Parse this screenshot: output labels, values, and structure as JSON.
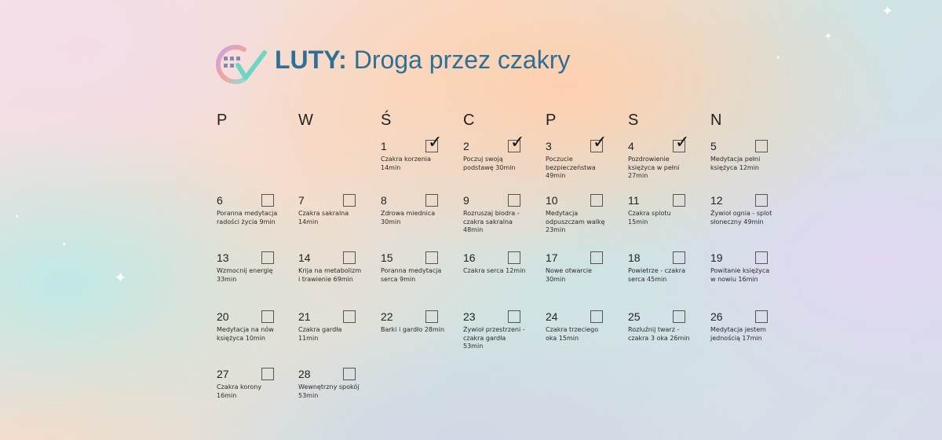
{
  "header": {
    "title_bold": "LUTY:",
    "title_rest": " Droga przez czakry"
  },
  "weekdays": [
    "P",
    "W",
    "Ś",
    "C",
    "P",
    "S",
    "N"
  ],
  "days": [
    {
      "day": "1",
      "text": "Czakra korzenia 14min",
      "done": true
    },
    {
      "day": "2",
      "text": "Poczuj swoją podstawę 30min",
      "done": true
    },
    {
      "day": "3",
      "text": "Poczucie bezpieczeństwa 49min",
      "done": true
    },
    {
      "day": "4",
      "text": "Pozdrowienie księżyca w pełni 27min",
      "done": true
    },
    {
      "day": "5",
      "text": "Medytacja pełni księżyca 12min",
      "done": false
    },
    {
      "day": "6",
      "text": "Poranna medytacja radości życia 9min",
      "done": false
    },
    {
      "day": "7",
      "text": "Czakra sakralna 14min",
      "done": false
    },
    {
      "day": "8",
      "text": "Zdrowa miednica 30min",
      "done": false
    },
    {
      "day": "9",
      "text": "Rozruszaj biodra - czakra sakralna 48min",
      "done": false
    },
    {
      "day": "10",
      "text": "Medytacja odpuszczam walkę 23min",
      "done": false
    },
    {
      "day": "11",
      "text": "Czakra splotu 15min",
      "done": false
    },
    {
      "day": "12",
      "text": "Żywioł ognia - splot słoneczny 49min",
      "done": false
    },
    {
      "day": "13",
      "text": "Wzmocnij energię 33min",
      "done": false
    },
    {
      "day": "14",
      "text": "Krija na metabolizm i trawienie 69min",
      "done": false
    },
    {
      "day": "15",
      "text": "Poranna medytacja serca 9min",
      "done": false
    },
    {
      "day": "16",
      "text": "Czakra serca 12min",
      "done": false
    },
    {
      "day": "17",
      "text": "Nowe otwarcie 30min",
      "done": false
    },
    {
      "day": "18",
      "text": "Powietrze - czakra serca 45min",
      "done": false
    },
    {
      "day": "19",
      "text": "Powitanie księżyca w nowiu 16min",
      "done": false
    },
    {
      "day": "20",
      "text": "Medytacja na nów księżyca 10min",
      "done": false
    },
    {
      "day": "21",
      "text": "Czakra gardła 11min",
      "done": false
    },
    {
      "day": "22",
      "text": "Barki i gardło 28min",
      "done": false
    },
    {
      "day": "23",
      "text": "Żywioł przestrzeni - czakra gardła 53min",
      "done": false
    },
    {
      "day": "24",
      "text": "Czakra trzeciego oka 15min",
      "done": false
    },
    {
      "day": "25",
      "text": "Rozluźnij twarz - czakra 3 oka 26min",
      "done": false
    },
    {
      "day": "26",
      "text": "Medytacja jestem jednością 17min",
      "done": false
    },
    {
      "day": "27",
      "text": "Czakra korony 16min",
      "done": false
    },
    {
      "day": "28",
      "text": "Wewnętrzny spokój 53min",
      "done": false
    }
  ],
  "check_glyph": "✓",
  "colors": {
    "title": "#2e6f96",
    "logo_gradient": [
      "#c9a3e6",
      "#f3a59b",
      "#8fe0cf"
    ]
  }
}
